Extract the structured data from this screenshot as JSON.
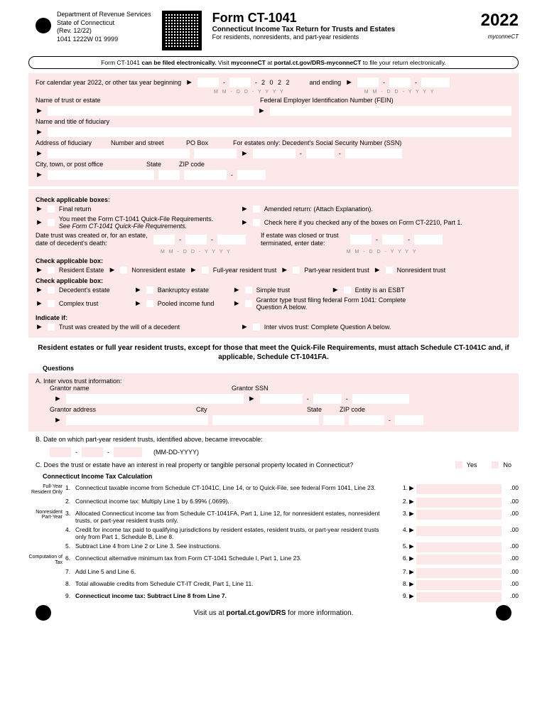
{
  "header": {
    "dept1": "Department of Revenue Services",
    "dept2": "State of Connecticut",
    "dept3": "(Rev. 12/22)",
    "dept4": "1041 1222W 01 9999",
    "formNum": "Form CT-1041",
    "year": "2022",
    "subtitle": "Connecticut Income Tax Return for Trusts and Estates",
    "sub2": "For residents, nonresidents, and part-year residents",
    "logo": "myconneCT"
  },
  "efile": "Form CT-1041 can be filed electronically. Visit myconneCT at portal.ct.gov/DRS-myconneCT to file your return electronically.",
  "period": {
    "begin": "For calendar year 2022, or other tax year beginning",
    "yearVal": "2 0 2 2",
    "end": "and ending",
    "hint": "M M - D D - Y Y Y Y"
  },
  "id": {
    "name": "Name of trust or estate",
    "fein": "Federal Employer Identification Number (FEIN)",
    "fiduciary": "Name and title of fiduciary",
    "address": "Address of fiduciary",
    "numStreet": "Number and street",
    "poBox": "PO Box",
    "ssn": "For estates only: Decedent's Social Security Number (SSN)",
    "city": "City, town, or post office",
    "state": "State",
    "zip": "ZIP code"
  },
  "boxes1": {
    "hdr": "Check applicable boxes:",
    "final": "Final return",
    "amended": "Amended return: (Attach Explanation).",
    "quickfile": "You meet the Form CT-1041 Quick-File Requirements.",
    "quickfile2": "See Form CT-1041 Quick-File Requirements.",
    "ct2210": "Check here if you checked any of the boxes on Form CT-2210, Part 1.",
    "created": "Date trust was created or, for an estate, date of decedent's death:",
    "closed": "If estate was closed or trust terminated, enter date:"
  },
  "boxes2": {
    "hdr": "Check applicable box:",
    "re": "Resident Estate",
    "ne": "Nonresident estate",
    "frt": "Full-year resident trust",
    "prt": "Part-year resident trust",
    "nt": "Nonresident trust"
  },
  "boxes3": {
    "hdr": "Check applicable box:",
    "de": "Decedent's estate",
    "be": "Bankruptcy estate",
    "st": "Simple trust",
    "esbt": "Entity is an ESBT",
    "ct": "Complex trust",
    "pif": "Pooled income fund",
    "gt": "Grantor type trust filing federal Form 1041: Complete Question A below."
  },
  "indicate": {
    "hdr": "Indicate if:",
    "will": "Trust was created by the will of a decedent",
    "inter": "Inter vivos trust: Complete Question A below."
  },
  "instruct": "Resident estates or full year resident trusts, except for those that meet the Quick-File Requirements, must attach Schedule CT-1041C and, if applicable, Schedule CT-1041FA.",
  "questions": {
    "hdr": "Questions",
    "a": "A.   Inter vivos trust information:",
    "gname": "Grantor name",
    "gssn": "Grantor SSN",
    "gaddr": "Grantor address",
    "city": "City",
    "state": "State",
    "zip": "ZIP code",
    "b": "B.   Date on which part-year resident trusts, identified above, became irrevocable:",
    "bhint": "(MM-DD-YYYY)",
    "c": "C.   Does the trust or estate have an interest in real property or tangible personal property located in Connecticut?",
    "yes": "Yes",
    "no": "No"
  },
  "calc": {
    "hdr": "Connecticut Income Tax Calculation",
    "side1": "Full-Year Resident Only",
    "side3": "Nonresident Part-Year",
    "side6": "Computation of Tax",
    "lines": [
      {
        "n": "1.",
        "t": "Connecticut taxable income from Schedule CT-1041C, Line 14, or to Quick-File, see federal Form 1041, Line 23.",
        "b": "1."
      },
      {
        "n": "2.",
        "t": "Connecticut income tax: Multiply Line 1 by 6.99% (.0699).",
        "b": "2."
      },
      {
        "n": "3.",
        "t": "Allocated Connecticut income tax from Schedule CT-1041FA, Part 1, Line 12, for nonresident estates, nonresident trusts, or part-year resident trusts only.",
        "b": "3."
      },
      {
        "n": "4.",
        "t": "Credit for income tax paid to qualifying jurisdictions by resident estates, resident trusts, or part-year resident trusts only from Part 1, Schedule B, Line 8.",
        "b": "4."
      },
      {
        "n": "5.",
        "t": "Subtract Line 4 from Line 2 or Line 3. See instructions.",
        "b": "5."
      },
      {
        "n": "6.",
        "t": "Connecticut alternative minimum tax from Form CT-1041 Schedule I, Part 1, Line 23.",
        "b": "6."
      },
      {
        "n": "7.",
        "t": "Add Line 5 and Line 6.",
        "b": "7."
      },
      {
        "n": "8.",
        "t": "Total allowable credits from Schedule CT-IT Credit, Part 1, Line 11.",
        "b": "8."
      },
      {
        "n": "9.",
        "t": "Connecticut income tax: Subtract Line 8 from Line 7.",
        "b": "9."
      }
    ],
    "cents": ".00"
  },
  "footer": "Visit us at portal.ct.gov/DRS for more information."
}
